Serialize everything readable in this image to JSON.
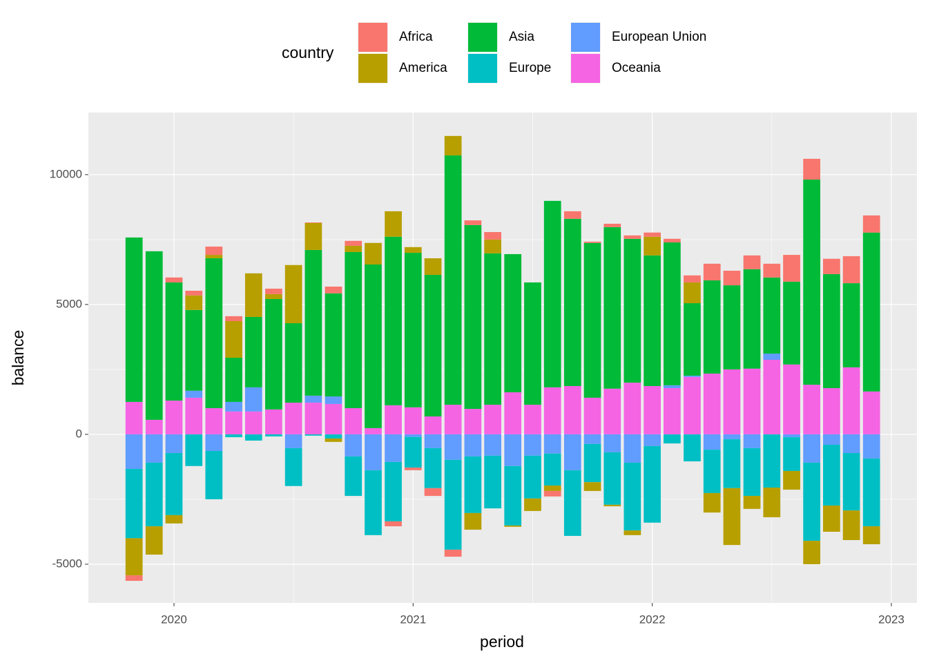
{
  "chart_data": {
    "type": "stacked_bar",
    "x_label": "period",
    "y_label": "balance",
    "legend_title": "country",
    "legend_position": "top",
    "grid": true,
    "x": [
      2019.833,
      2019.917,
      2020.0,
      2020.083,
      2020.167,
      2020.25,
      2020.333,
      2020.417,
      2020.5,
      2020.583,
      2020.667,
      2020.75,
      2020.833,
      2020.917,
      2021.0,
      2021.083,
      2021.167,
      2021.25,
      2021.333,
      2021.417,
      2021.5,
      2021.583,
      2021.667,
      2021.75,
      2021.833,
      2021.917,
      2022.0,
      2022.083,
      2022.167,
      2022.25,
      2022.333,
      2022.417,
      2022.5,
      2022.583,
      2022.667,
      2022.75,
      2022.833,
      2022.917
    ],
    "xlim": [
      2019.642,
      2023.107
    ],
    "xticks": [
      2020,
      2021,
      2022,
      2023
    ],
    "xticks_minor": [
      2019.5,
      2020.5,
      2021.5,
      2022.5
    ],
    "ylim": [
      -6490,
      12390
    ],
    "yticks": [
      -5000,
      0,
      5000,
      10000
    ],
    "yticks_minor": [
      -2500,
      2500,
      7500
    ],
    "series": [
      {
        "name": "Africa",
        "color": "#F8766D",
        "values": [
          -210,
          0,
          190,
          180,
          320,
          190,
          0,
          210,
          0,
          20,
          260,
          190,
          0,
          -190,
          -100,
          -300,
          -270,
          180,
          290,
          0,
          0,
          -210,
          290,
          50,
          130,
          130,
          160,
          140,
          270,
          640,
          560,
          530,
          530,
          1030,
          800,
          590,
          1040,
          660
        ]
      },
      {
        "name": "America",
        "color": "#B79F00",
        "values": [
          -1430,
          -1090,
          -320,
          560,
          130,
          1410,
          1680,
          190,
          2240,
          1040,
          -130,
          240,
          830,
          980,
          220,
          640,
          750,
          -640,
          530,
          -50,
          -480,
          -210,
          0,
          -340,
          -60,
          -180,
          720,
          0,
          800,
          -750,
          -2190,
          -500,
          -1140,
          -720,
          -900,
          -1010,
          -1140,
          -690
        ]
      },
      {
        "name": "Asia",
        "color": "#00BA38",
        "values": [
          6330,
          6490,
          4550,
          3110,
          5770,
          1700,
          2710,
          4250,
          3060,
          5610,
          3970,
          6010,
          6300,
          6490,
          5950,
          5450,
          9600,
          7080,
          5830,
          5320,
          4710,
          7180,
          6440,
          5960,
          6220,
          5540,
          5030,
          5500,
          2790,
          3590,
          3240,
          3830,
          2930,
          3190,
          7900,
          4390,
          3240,
          6120
        ]
      },
      {
        "name": "Europe",
        "color": "#00BFC4",
        "values": [
          -2670,
          -2450,
          -2390,
          -1220,
          -1860,
          -110,
          -240,
          -80,
          -1460,
          -50,
          -160,
          -1520,
          -2500,
          -2290,
          -1180,
          -1540,
          -3460,
          -2180,
          -2030,
          -2290,
          -1650,
          -1230,
          -2530,
          -1470,
          -2020,
          -2610,
          -2950,
          -350,
          -1040,
          -1670,
          -1880,
          -1840,
          -2050,
          -1300,
          -3010,
          -2340,
          -2210,
          -2610
        ]
      },
      {
        "name": "European Union",
        "color": "#619CFF",
        "values": [
          -1330,
          -1090,
          -720,
          270,
          -640,
          370,
          930,
          0,
          -530,
          270,
          290,
          -850,
          -1380,
          -1060,
          -100,
          -530,
          -980,
          -850,
          -820,
          -1220,
          -820,
          -740,
          -1380,
          -370,
          -690,
          -1090,
          -450,
          110,
          50,
          -590,
          -190,
          -530,
          240,
          -110,
          -1090,
          -400,
          -720,
          -930
        ]
      },
      {
        "name": "Oceania",
        "color": "#F564E3",
        "values": [
          1250,
          560,
          1300,
          1410,
          1010,
          880,
          880,
          960,
          1220,
          1220,
          1170,
          1010,
          240,
          1120,
          1040,
          690,
          1140,
          980,
          1140,
          1620,
          1140,
          1810,
          1860,
          1410,
          1760,
          1990,
          1860,
          1780,
          2210,
          2340,
          2500,
          2530,
          2870,
          2690,
          1910,
          1780,
          2580,
          1650
        ]
      }
    ]
  }
}
